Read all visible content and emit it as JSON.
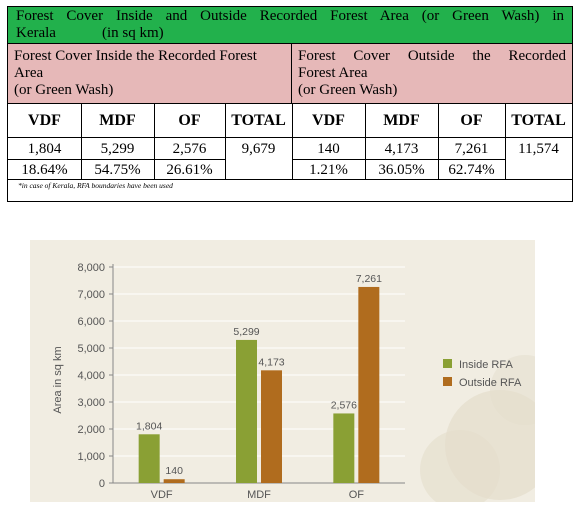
{
  "table": {
    "title_line1": "Forest Cover Inside and Outside Recorded Forest Area (or Green Wash) in",
    "title_line2": "Kerala",
    "title_unit": "(in sq km)",
    "inside_heading_1": "Forest Cover Inside the Recorded Forest",
    "inside_heading_2": "Area",
    "inside_heading_3": "(or Green Wash)",
    "outside_heading_1": "Forest Cover Outside the Recorded",
    "outside_heading_2": "Forest Area",
    "outside_heading_3": "(or Green Wash)",
    "columns": [
      "VDF",
      "MDF",
      "OF",
      "TOTAL",
      "VDF",
      "MDF",
      "OF",
      "TOTAL"
    ],
    "values": [
      "1,804",
      "5,299",
      "2,576",
      "9,679",
      "140",
      "4,173",
      "7,261",
      "11,574"
    ],
    "percents": [
      "18.64%",
      "54.75%",
      "26.61%",
      "1.21%",
      "36.05%",
      "62.74%"
    ],
    "footnote": "*in case of Kerala, RFA boundaries have been used"
  },
  "chart_data": {
    "type": "bar",
    "categories": [
      "VDF",
      "MDF",
      "OF"
    ],
    "series": [
      {
        "name": "Inside RFA",
        "values": [
          1804,
          5299,
          2576
        ],
        "labels": [
          "1,804",
          "5,299",
          "2,576"
        ],
        "color": "#8aa034"
      },
      {
        "name": "Outside RFA",
        "values": [
          140,
          4173,
          7261
        ],
        "labels": [
          "140",
          "4,173",
          "7,261"
        ],
        "color": "#b06c1e"
      }
    ],
    "ylabel": "Area in sq km",
    "ylim": [
      0,
      8000
    ],
    "yticks": [
      "0",
      "1,000",
      "2,000",
      "3,000",
      "4,000",
      "5,000",
      "6,000",
      "7,000",
      "8,000"
    ],
    "grid": true,
    "legend_position": "right"
  }
}
